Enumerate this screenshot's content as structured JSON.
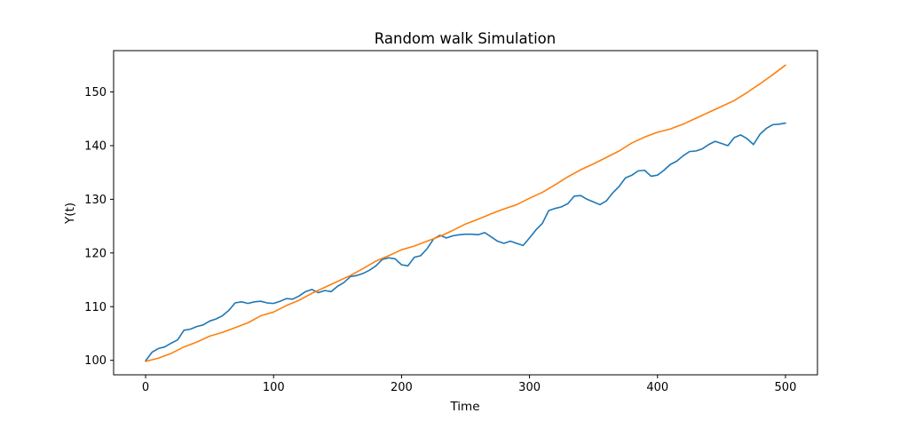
{
  "chart_data": {
    "type": "line",
    "title": "Random walk Simulation",
    "xlabel": "Time",
    "ylabel": "Y(t)",
    "xlim": [
      -25,
      525
    ],
    "ylim": [
      97.3,
      157.7
    ],
    "xticks": [
      0,
      100,
      200,
      300,
      400,
      500
    ],
    "yticks": [
      100,
      110,
      120,
      130,
      140,
      150
    ],
    "grid": false,
    "legend": "none",
    "series": [
      {
        "color": "#1f77b4",
        "x": [
          0,
          5,
          10,
          15,
          20,
          25,
          30,
          35,
          40,
          45,
          50,
          55,
          60,
          65,
          70,
          75,
          80,
          85,
          90,
          95,
          100,
          105,
          110,
          115,
          120,
          125,
          130,
          135,
          140,
          145,
          150,
          155,
          160,
          165,
          170,
          175,
          180,
          185,
          190,
          195,
          200,
          205,
          210,
          215,
          220,
          225,
          230,
          235,
          240,
          245,
          250,
          255,
          260,
          265,
          270,
          275,
          280,
          285,
          290,
          295,
          300,
          305,
          310,
          315,
          320,
          325,
          330,
          335,
          340,
          345,
          350,
          355,
          360,
          365,
          370,
          375,
          380,
          385,
          390,
          395,
          400,
          405,
          410,
          415,
          420,
          425,
          430,
          435,
          440,
          445,
          450,
          455,
          460,
          465,
          470,
          475,
          480,
          485,
          490,
          495,
          500
        ],
        "y": [
          99.9,
          101.5,
          102.2,
          102.5,
          103.2,
          103.8,
          105.6,
          105.8,
          106.3,
          106.6,
          107.3,
          107.7,
          108.3,
          109.3,
          110.7,
          110.9,
          110.6,
          110.9,
          111.0,
          110.7,
          110.6,
          111.0,
          111.5,
          111.4,
          112.0,
          112.8,
          113.2,
          112.6,
          113.0,
          112.8,
          113.8,
          114.5,
          115.6,
          115.8,
          116.2,
          116.8,
          117.6,
          118.8,
          119.1,
          118.9,
          117.8,
          117.6,
          119.2,
          119.5,
          120.8,
          122.6,
          123.3,
          122.8,
          123.2,
          123.4,
          123.5,
          123.5,
          123.4,
          123.8,
          123.0,
          122.2,
          121.8,
          122.2,
          121.8,
          121.4,
          122.8,
          124.3,
          125.5,
          127.9,
          128.3,
          128.6,
          129.2,
          130.6,
          130.7,
          130.0,
          129.5,
          129.0,
          129.7,
          131.2,
          132.4,
          134.0,
          134.5,
          135.3,
          135.4,
          134.3,
          134.5,
          135.4,
          136.5,
          137.1,
          138.1,
          138.9,
          139.0,
          139.4,
          140.2,
          140.8,
          140.4,
          140.0,
          141.5,
          142.0,
          141.3,
          140.2,
          142.1,
          143.2,
          143.9,
          144.0,
          144.2
        ]
      },
      {
        "color": "#ff7f0e",
        "x": [
          0,
          10,
          20,
          30,
          40,
          50,
          60,
          70,
          80,
          90,
          100,
          110,
          120,
          130,
          140,
          150,
          160,
          170,
          180,
          190,
          200,
          210,
          220,
          230,
          240,
          250,
          260,
          270,
          280,
          290,
          300,
          310,
          320,
          330,
          340,
          350,
          360,
          370,
          380,
          390,
          400,
          410,
          420,
          430,
          440,
          450,
          460,
          470,
          480,
          490,
          500
        ],
        "y": [
          99.8,
          100.4,
          101.3,
          102.5,
          103.4,
          104.5,
          105.2,
          106.1,
          107.0,
          108.3,
          109.0,
          110.2,
          111.2,
          112.5,
          113.6,
          114.7,
          115.8,
          117.1,
          118.5,
          119.5,
          120.6,
          121.3,
          122.2,
          123.1,
          124.2,
          125.4,
          126.3,
          127.3,
          128.2,
          129.0,
          130.2,
          131.3,
          132.7,
          134.2,
          135.5,
          136.6,
          137.8,
          139.0,
          140.5,
          141.6,
          142.5,
          143.1,
          144.0,
          145.1,
          146.2,
          147.3,
          148.4,
          149.9,
          151.5,
          153.2,
          155.0
        ]
      }
    ]
  }
}
